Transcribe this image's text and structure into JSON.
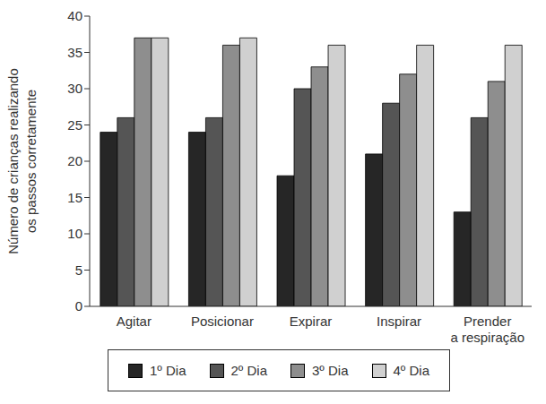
{
  "chart_data": {
    "type": "bar",
    "ylabel": "Número de crianças realizando os passos corretamente",
    "categories": [
      "Agitar",
      "Posicionar",
      "Expirar",
      "Inspirar",
      "Prender a respiração"
    ],
    "series": [
      {
        "name": "1º Dia",
        "color": "#262626",
        "values": [
          24,
          24,
          18,
          21,
          13
        ]
      },
      {
        "name": "2º Dia",
        "color": "#555555",
        "values": [
          26,
          26,
          30,
          28,
          26
        ]
      },
      {
        "name": "3º Dia",
        "color": "#8e8e8e",
        "values": [
          37,
          36,
          33,
          32,
          31
        ]
      },
      {
        "name": "4º Dia",
        "color": "#d0d0d0",
        "values": [
          37,
          37,
          36,
          36,
          36
        ]
      }
    ],
    "ylim": [
      0,
      40
    ],
    "yticks": [
      0,
      5,
      10,
      15,
      20,
      25,
      30,
      35,
      40
    ],
    "grid": false,
    "legend": "bottom"
  }
}
